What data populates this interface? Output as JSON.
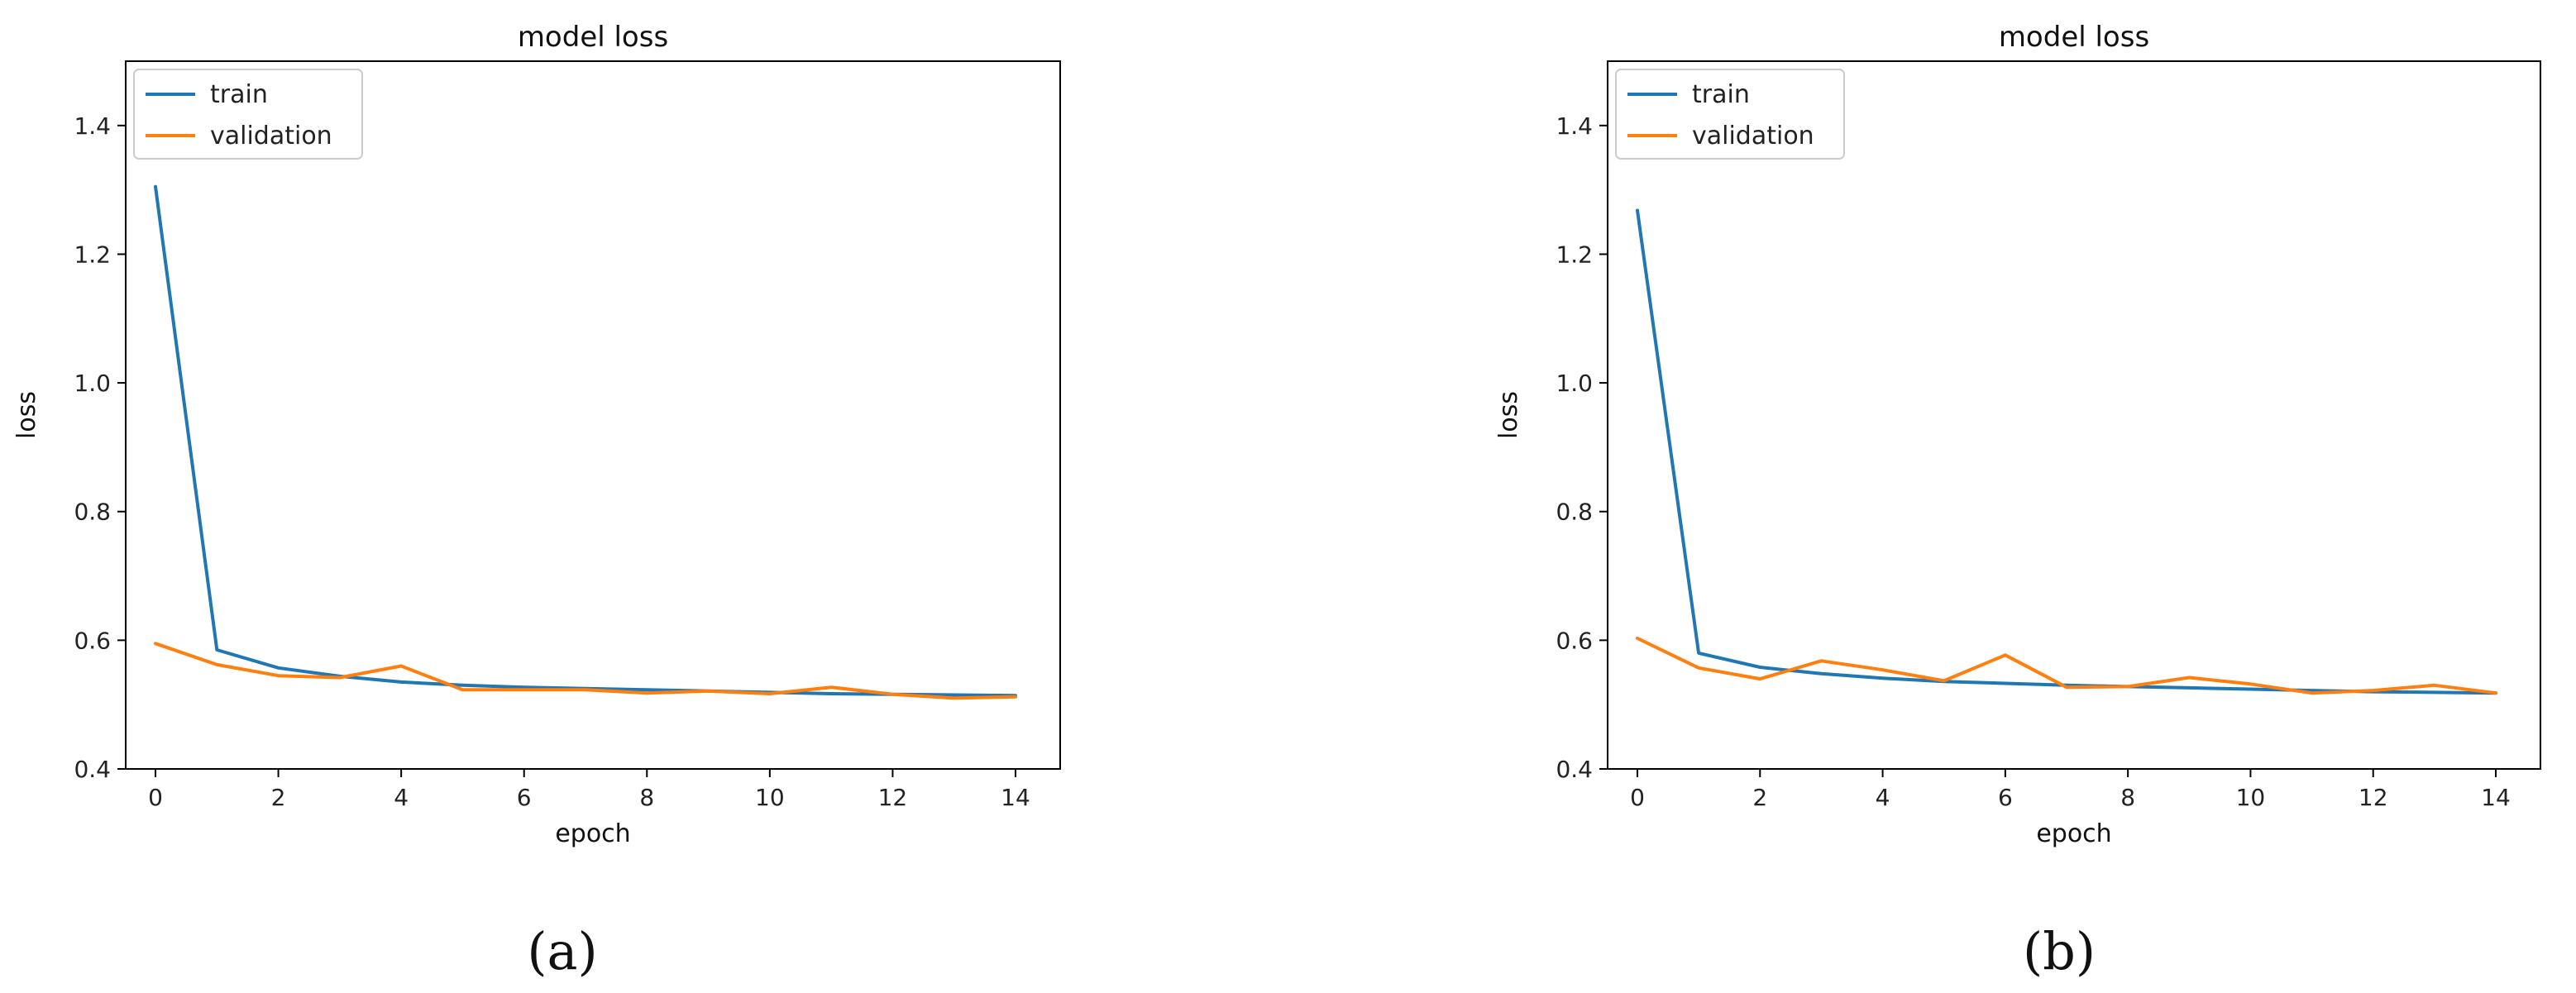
{
  "chart_data": [
    {
      "type": "line",
      "panel_label": "(a)",
      "title": "model loss",
      "xlabel": "epoch",
      "ylabel": "loss",
      "xlim": [
        0,
        14
      ],
      "ylim": [
        0.4,
        1.5
      ],
      "xticks": [
        0,
        2,
        4,
        6,
        8,
        10,
        12,
        14
      ],
      "yticks": [
        0.4,
        0.6,
        0.8,
        1.0,
        1.2,
        1.4
      ],
      "legend_position": "top-left",
      "grid": false,
      "x": [
        0,
        1,
        2,
        3,
        4,
        5,
        6,
        7,
        8,
        9,
        10,
        11,
        12,
        13,
        14
      ],
      "series": [
        {
          "name": "train",
          "color": "#1f77b4",
          "values": [
            1.305,
            0.585,
            0.557,
            0.544,
            0.535,
            0.53,
            0.527,
            0.525,
            0.523,
            0.521,
            0.519,
            0.517,
            0.516,
            0.515,
            0.514
          ]
        },
        {
          "name": "validation",
          "color": "#ff7f0e",
          "values": [
            0.595,
            0.562,
            0.545,
            0.542,
            0.56,
            0.523,
            0.523,
            0.523,
            0.518,
            0.521,
            0.517,
            0.527,
            0.516,
            0.51,
            0.512
          ]
        }
      ]
    },
    {
      "type": "line",
      "panel_label": "(b)",
      "title": "model loss",
      "xlabel": "epoch",
      "ylabel": "loss",
      "xlim": [
        0,
        14
      ],
      "ylim": [
        0.4,
        1.5
      ],
      "xticks": [
        0,
        2,
        4,
        6,
        8,
        10,
        12,
        14
      ],
      "yticks": [
        0.4,
        0.6,
        0.8,
        1.0,
        1.2,
        1.4
      ],
      "legend_position": "top-left",
      "grid": false,
      "x": [
        0,
        1,
        2,
        3,
        4,
        5,
        6,
        7,
        8,
        9,
        10,
        11,
        12,
        13,
        14
      ],
      "series": [
        {
          "name": "train",
          "color": "#1f77b4",
          "values": [
            1.268,
            0.58,
            0.558,
            0.548,
            0.541,
            0.536,
            0.533,
            0.53,
            0.528,
            0.526,
            0.524,
            0.522,
            0.52,
            0.519,
            0.518
          ]
        },
        {
          "name": "validation",
          "color": "#ff7f0e",
          "values": [
            0.603,
            0.557,
            0.54,
            0.568,
            0.554,
            0.537,
            0.577,
            0.527,
            0.528,
            0.542,
            0.532,
            0.518,
            0.522,
            0.53,
            0.518
          ]
        }
      ]
    }
  ]
}
